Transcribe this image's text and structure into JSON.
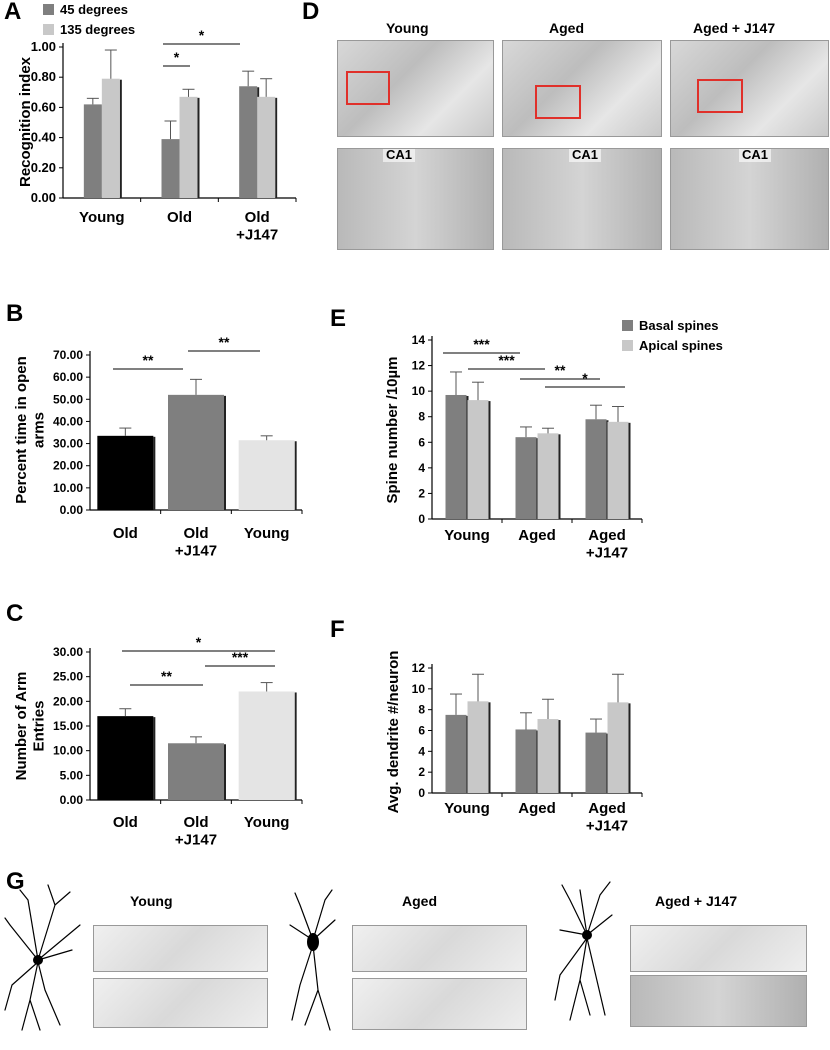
{
  "panels": {
    "A": "A",
    "B": "B",
    "C": "C",
    "D": "D",
    "E": "E",
    "F": "F",
    "G": "G"
  },
  "colors": {
    "dark_gray": "#7f7f7f",
    "light_gray": "#c8c8c8",
    "black": "#000000",
    "very_light_gray": "#e4e4e4",
    "roi_red": "#e0302a"
  },
  "chart_data": [
    {
      "panel": "A",
      "type": "bar",
      "categories": [
        "Young",
        "Old",
        "Old\n+J147"
      ],
      "series": [
        {
          "name": "45 degrees",
          "values": [
            0.62,
            0.39,
            0.74
          ],
          "errors": [
            0.04,
            0.12,
            0.1
          ]
        },
        {
          "name": "135 degrees",
          "values": [
            0.79,
            0.67,
            0.67
          ],
          "errors": [
            0.19,
            0.05,
            0.12
          ]
        }
      ],
      "ylabel": "Recognition index",
      "yticks": [
        "0.00",
        "0.20",
        "0.40",
        "0.60",
        "0.80",
        "1.00"
      ],
      "ylim": [
        0,
        1.0
      ],
      "legend": "top-left",
      "annotations": [
        {
          "text": "*",
          "from": [
            1,
            0
          ],
          "to": [
            1,
            1
          ]
        },
        {
          "text": "*",
          "from": [
            1,
            0
          ],
          "to": [
            2,
            0
          ]
        }
      ]
    },
    {
      "panel": "B",
      "type": "bar",
      "categories": [
        "Old",
        "Old\n+J147",
        "Young"
      ],
      "values": [
        33.5,
        52.0,
        31.5
      ],
      "errors": [
        3.5,
        7.0,
        2.0
      ],
      "ylabel": "Percent time in open arms",
      "yticks": [
        "0.00",
        "10.00",
        "20.00",
        "30.00",
        "40.00",
        "50.00",
        "60.00",
        "70.00"
      ],
      "ylim": [
        0,
        70
      ],
      "annotations": [
        {
          "text": "**",
          "from": 0,
          "to": 1
        },
        {
          "text": "**",
          "from": 1,
          "to": 2
        }
      ]
    },
    {
      "panel": "C",
      "type": "bar",
      "categories": [
        "Old",
        "Old\n+J147",
        "Young"
      ],
      "values": [
        17.0,
        11.5,
        22.0
      ],
      "errors": [
        1.5,
        1.3,
        1.8
      ],
      "ylabel": "Number of Arm Entries",
      "yticks": [
        "0.00",
        "5.00",
        "10.00",
        "15.00",
        "20.00",
        "25.00",
        "30.00"
      ],
      "ylim": [
        0,
        30
      ],
      "annotations": [
        {
          "text": "*",
          "from": 0,
          "to": 2
        },
        {
          "text": "***",
          "from": 1,
          "to": 2
        },
        {
          "text": "**",
          "from": 0,
          "to": 1
        }
      ]
    },
    {
      "panel": "E",
      "type": "bar",
      "categories": [
        "Young",
        "Aged",
        "Aged\n+J147"
      ],
      "series": [
        {
          "name": "Basal spines",
          "values": [
            9.7,
            6.4,
            7.8
          ],
          "errors": [
            1.8,
            0.8,
            1.1
          ]
        },
        {
          "name": "Apical spines",
          "values": [
            9.3,
            6.7,
            7.6
          ],
          "errors": [
            1.4,
            0.4,
            1.2
          ]
        }
      ],
      "ylabel": "Spine number /10µm",
      "yticks": [
        "0",
        "2",
        "4",
        "6",
        "8",
        "10",
        "12",
        "14"
      ],
      "ylim": [
        0,
        14
      ],
      "legend": "top-right",
      "annotations": [
        {
          "text": "***",
          "from": [
            0,
            0
          ],
          "to": [
            1,
            0
          ]
        },
        {
          "text": "***",
          "from": [
            0,
            1
          ],
          "to": [
            1,
            1
          ]
        },
        {
          "text": "**",
          "from": [
            1,
            0
          ],
          "to": [
            2,
            0
          ]
        },
        {
          "text": "*",
          "from": [
            1,
            1
          ],
          "to": [
            2,
            1
          ]
        }
      ]
    },
    {
      "panel": "F",
      "type": "bar",
      "categories": [
        "Young",
        "Aged",
        "Aged\n+J147"
      ],
      "series": [
        {
          "values": [
            7.5,
            6.1,
            5.8
          ],
          "errors": [
            2.0,
            1.6,
            1.3
          ]
        },
        {
          "values": [
            8.8,
            7.1,
            8.7
          ],
          "errors": [
            2.6,
            1.9,
            2.7
          ]
        }
      ],
      "ylabel": "Avg. dendrite #/neuron",
      "yticks": [
        "0",
        "2",
        "4",
        "6",
        "8",
        "10",
        "12"
      ],
      "ylim": [
        0,
        12
      ]
    }
  ],
  "panel_d": {
    "columns": [
      "Young",
      "Aged",
      "Aged + J147"
    ],
    "region_label": "CA1"
  },
  "panel_g": {
    "columns": [
      "Young",
      "Aged",
      "Aged + J147"
    ]
  }
}
